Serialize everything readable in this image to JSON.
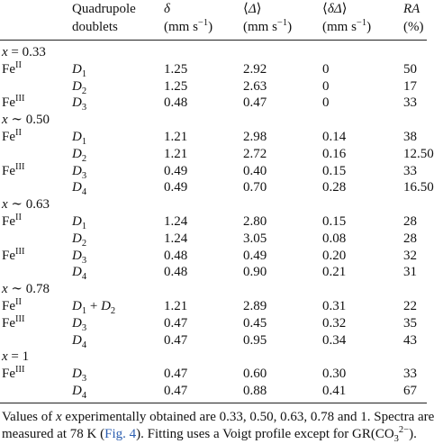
{
  "table": {
    "headers": [
      {
        "line1": [
          [
            "Quadrupole",
            "r"
          ]
        ],
        "line2": [
          [
            "doublets",
            "r"
          ]
        ]
      },
      {
        "line1": [
          [
            "δ",
            "i"
          ]
        ],
        "line2": [
          [
            "(mm s",
            "r"
          ],
          [
            "−1",
            "sup"
          ],
          [
            ")",
            "r"
          ]
        ]
      },
      {
        "line1": [
          [
            "⟨",
            "r"
          ],
          [
            "Δ",
            "i"
          ],
          [
            "⟩",
            "r"
          ]
        ],
        "line2": [
          [
            "(mm s",
            "r"
          ],
          [
            "−1",
            "sup"
          ],
          [
            ")",
            "r"
          ]
        ]
      },
      {
        "line1": [
          [
            "⟨",
            "r"
          ],
          [
            "δΔ",
            "i"
          ],
          [
            "⟩",
            "r"
          ]
        ],
        "line2": [
          [
            "(mm s",
            "r"
          ],
          [
            "−1",
            "sup"
          ],
          [
            ")",
            "r"
          ]
        ]
      },
      {
        "line1": [
          [
            "RA",
            "i"
          ]
        ],
        "line2": [
          [
            "(%)",
            "r"
          ]
        ]
      }
    ],
    "groups": [
      {
        "label": [
          [
            "x",
            "i"
          ],
          [
            " = 0.33",
            "r"
          ]
        ],
        "rows": [
          {
            "phase": [
              [
                "Fe",
                "r"
              ],
              [
                "II",
                "sup"
              ]
            ],
            "doublet": [
              [
                "D",
                "i"
              ],
              [
                "1",
                "sub"
              ]
            ],
            "cells": [
              "1.25",
              "2.92",
              "0",
              "50"
            ]
          },
          {
            "doublet": [
              [
                "D",
                "i"
              ],
              [
                "2",
                "sub"
              ]
            ],
            "cells": [
              "1.25",
              "2.63",
              "0",
              "17"
            ]
          },
          {
            "phase": [
              [
                "Fe",
                "r"
              ],
              [
                "III",
                "sup"
              ]
            ],
            "doublet": [
              [
                "D",
                "i"
              ],
              [
                "3",
                "sub"
              ]
            ],
            "cells": [
              "0.48",
              "0.47",
              "0",
              "33"
            ]
          }
        ]
      },
      {
        "label": [
          [
            "x",
            "i"
          ],
          [
            " ∼ 0.50",
            "r"
          ]
        ],
        "rows": [
          {
            "phase": [
              [
                "Fe",
                "r"
              ],
              [
                "II",
                "sup"
              ]
            ],
            "doublet": [
              [
                "D",
                "i"
              ],
              [
                "1",
                "sub"
              ]
            ],
            "cells": [
              "1.21",
              "2.98",
              "0.14",
              "38"
            ]
          },
          {
            "doublet": [
              [
                "D",
                "i"
              ],
              [
                "2",
                "sub"
              ]
            ],
            "cells": [
              "1.21",
              "2.72",
              "0.16",
              "12.50"
            ]
          },
          {
            "phase": [
              [
                "Fe",
                "r"
              ],
              [
                "III",
                "sup"
              ]
            ],
            "doublet": [
              [
                "D",
                "i"
              ],
              [
                "3",
                "sub"
              ]
            ],
            "cells": [
              "0.49",
              "0.40",
              "0.15",
              "33"
            ]
          },
          {
            "doublet": [
              [
                "D",
                "i"
              ],
              [
                "4",
                "sub"
              ]
            ],
            "cells": [
              "0.49",
              "0.70",
              "0.28",
              "16.50"
            ]
          }
        ]
      },
      {
        "label": [
          [
            "x",
            "i"
          ],
          [
            " ∼ 0.63",
            "r"
          ]
        ],
        "rows": [
          {
            "phase": [
              [
                "Fe",
                "r"
              ],
              [
                "II",
                "sup"
              ]
            ],
            "doublet": [
              [
                "D",
                "i"
              ],
              [
                "1",
                "sub"
              ]
            ],
            "cells": [
              "1.24",
              "2.80",
              "0.15",
              "28"
            ]
          },
          {
            "doublet": [
              [
                "D",
                "i"
              ],
              [
                "2",
                "sub"
              ]
            ],
            "cells": [
              "1.24",
              "3.05",
              "0.08",
              "28"
            ]
          },
          {
            "phase": [
              [
                "Fe",
                "r"
              ],
              [
                "III",
                "sup"
              ]
            ],
            "doublet": [
              [
                "D",
                "i"
              ],
              [
                "3",
                "sub"
              ]
            ],
            "cells": [
              "0.48",
              "0.49",
              "0.20",
              "32"
            ]
          },
          {
            "doublet": [
              [
                "D",
                "i"
              ],
              [
                "4",
                "sub"
              ]
            ],
            "cells": [
              "0.48",
              "0.90",
              "0.21",
              "31"
            ]
          }
        ]
      },
      {
        "label": [
          [
            "x",
            "i"
          ],
          [
            " ∼ 0.78",
            "r"
          ]
        ],
        "rows": [
          {
            "phase": [
              [
                "Fe",
                "r"
              ],
              [
                "II",
                "sup"
              ]
            ],
            "doublet": [
              [
                "D",
                "i"
              ],
              [
                "1",
                "sub"
              ],
              [
                " + ",
                "r"
              ],
              [
                "D",
                "i"
              ],
              [
                "2",
                "sub"
              ]
            ],
            "cells": [
              "1.21",
              "2.89",
              "0.31",
              "22"
            ]
          },
          {
            "phase": [
              [
                "Fe",
                "r"
              ],
              [
                "III",
                "sup"
              ]
            ],
            "doublet": [
              [
                "D",
                "i"
              ],
              [
                "3",
                "sub"
              ]
            ],
            "cells": [
              "0.47",
              "0.45",
              "0.32",
              "35"
            ]
          },
          {
            "doublet": [
              [
                "D",
                "i"
              ],
              [
                "4",
                "sub"
              ]
            ],
            "cells": [
              "0.47",
              "0.95",
              "0.34",
              "43"
            ]
          }
        ]
      },
      {
        "label": [
          [
            "x",
            "i"
          ],
          [
            " = 1",
            "r"
          ]
        ],
        "rows": [
          {
            "phase": [
              [
                "Fe",
                "r"
              ],
              [
                "III",
                "sup"
              ]
            ],
            "doublet": [
              [
                "D",
                "i"
              ],
              [
                "3",
                "sub"
              ]
            ],
            "cells": [
              "0.47",
              "0.60",
              "0.30",
              "33"
            ]
          },
          {
            "doublet": [
              [
                "D",
                "i"
              ],
              [
                "4",
                "sub"
              ]
            ],
            "cells": [
              "0.47",
              "0.88",
              "0.41",
              "67"
            ]
          }
        ]
      }
    ],
    "caption": [
      [
        [
          "Values of ",
          "r"
        ],
        [
          "x",
          "i"
        ],
        [
          " experimentally obtained are 0.33, 0.50, 0.63, 0.78 and 1. Spectra are",
          "r"
        ]
      ],
      [
        [
          "measured at 78 K (",
          "r"
        ],
        [
          "Fig. 4",
          "link"
        ],
        [
          "). Fitting uses a Voigt profile except for GR(CO",
          "r"
        ],
        [
          "3",
          "sub"
        ],
        [
          "2−",
          "sup"
        ],
        [
          ").",
          "r"
        ]
      ]
    ]
  }
}
